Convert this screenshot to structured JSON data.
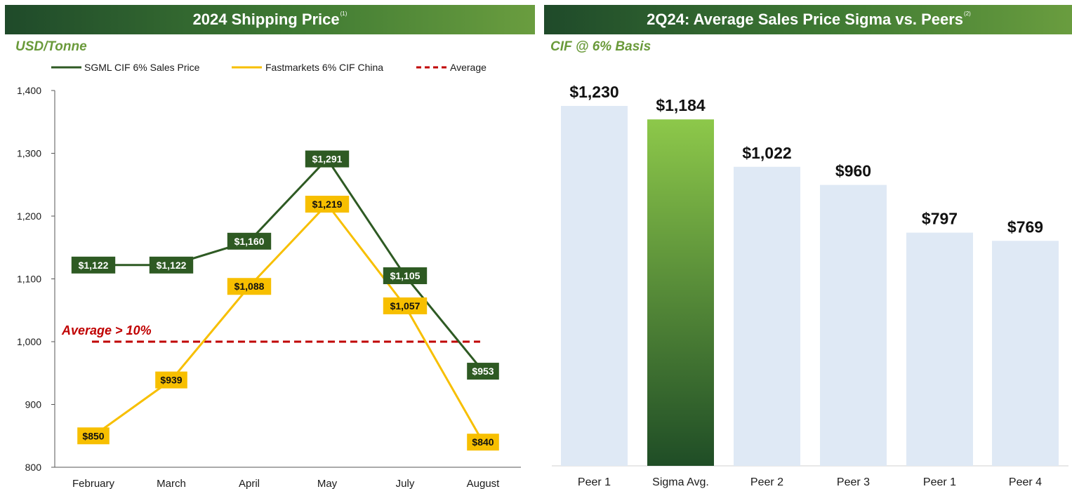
{
  "left": {
    "title": "2024 Shipping Price",
    "title_sup": "(1)",
    "unit_label": "USD/Tonne",
    "annotation": "Average > 10%"
  },
  "right": {
    "title": "2Q24: Average Sales Price Sigma vs. Peers",
    "title_sup": "(2)",
    "basis_label": "CIF @ 6% Basis"
  },
  "colors": {
    "sgml": "#2e5a23",
    "fastmarkets": "#f7bf00",
    "average": "#c00000",
    "peer_bar": "#dfe9f5",
    "sigma_top": "#8dc84a",
    "sigma_bottom": "#1f4d26"
  },
  "chart_data": [
    {
      "type": "line",
      "title": "2024 Shipping Price",
      "ylabel": "USD/Tonne",
      "xlabel": "",
      "categories": [
        "February",
        "March",
        "April",
        "May",
        "July",
        "August"
      ],
      "ylim": [
        800,
        1400
      ],
      "yticks": [
        800,
        900,
        1000,
        1100,
        1200,
        1300,
        1400
      ],
      "ytick_labels": [
        "800",
        "900",
        "1,000",
        "1,100",
        "1,200",
        "1,300",
        "1,400"
      ],
      "grid": false,
      "legend": "top",
      "series": [
        {
          "name": "SGML CIF 6% Sales Price",
          "values": [
            1122,
            1122,
            1160,
            1291,
            1105,
            953
          ],
          "labels": [
            "$1,122",
            "$1,122",
            "$1,160",
            "$1,291",
            "$1,105",
            "$953"
          ]
        },
        {
          "name": "Fastmarkets 6% CIF China",
          "values": [
            850,
            939,
            1088,
            1219,
            1057,
            840
          ],
          "labels": [
            "$850",
            "$939",
            "$1,088",
            "$1,219",
            "$1,057",
            "$840"
          ]
        }
      ],
      "reference_lines": [
        {
          "name": "Average",
          "value": 1000,
          "style": "dashed"
        }
      ],
      "annotations": [
        "Average > 10%"
      ]
    },
    {
      "type": "bar",
      "title": "2Q24: Average Sales Price Sigma vs. Peers",
      "subtitle": "CIF @ 6% Basis",
      "categories": [
        "Peer 1",
        "Sigma Avg.",
        "Peer 2",
        "Peer 3",
        "Peer 1",
        "Peer 4"
      ],
      "values": [
        1230,
        1184,
        1022,
        960,
        797,
        769
      ],
      "labels": [
        "$1,230",
        "$1,184",
        "$1,022",
        "$960",
        "$797",
        "$769"
      ],
      "ylim": [
        0,
        1400
      ],
      "highlight": "Sigma Avg."
    }
  ]
}
